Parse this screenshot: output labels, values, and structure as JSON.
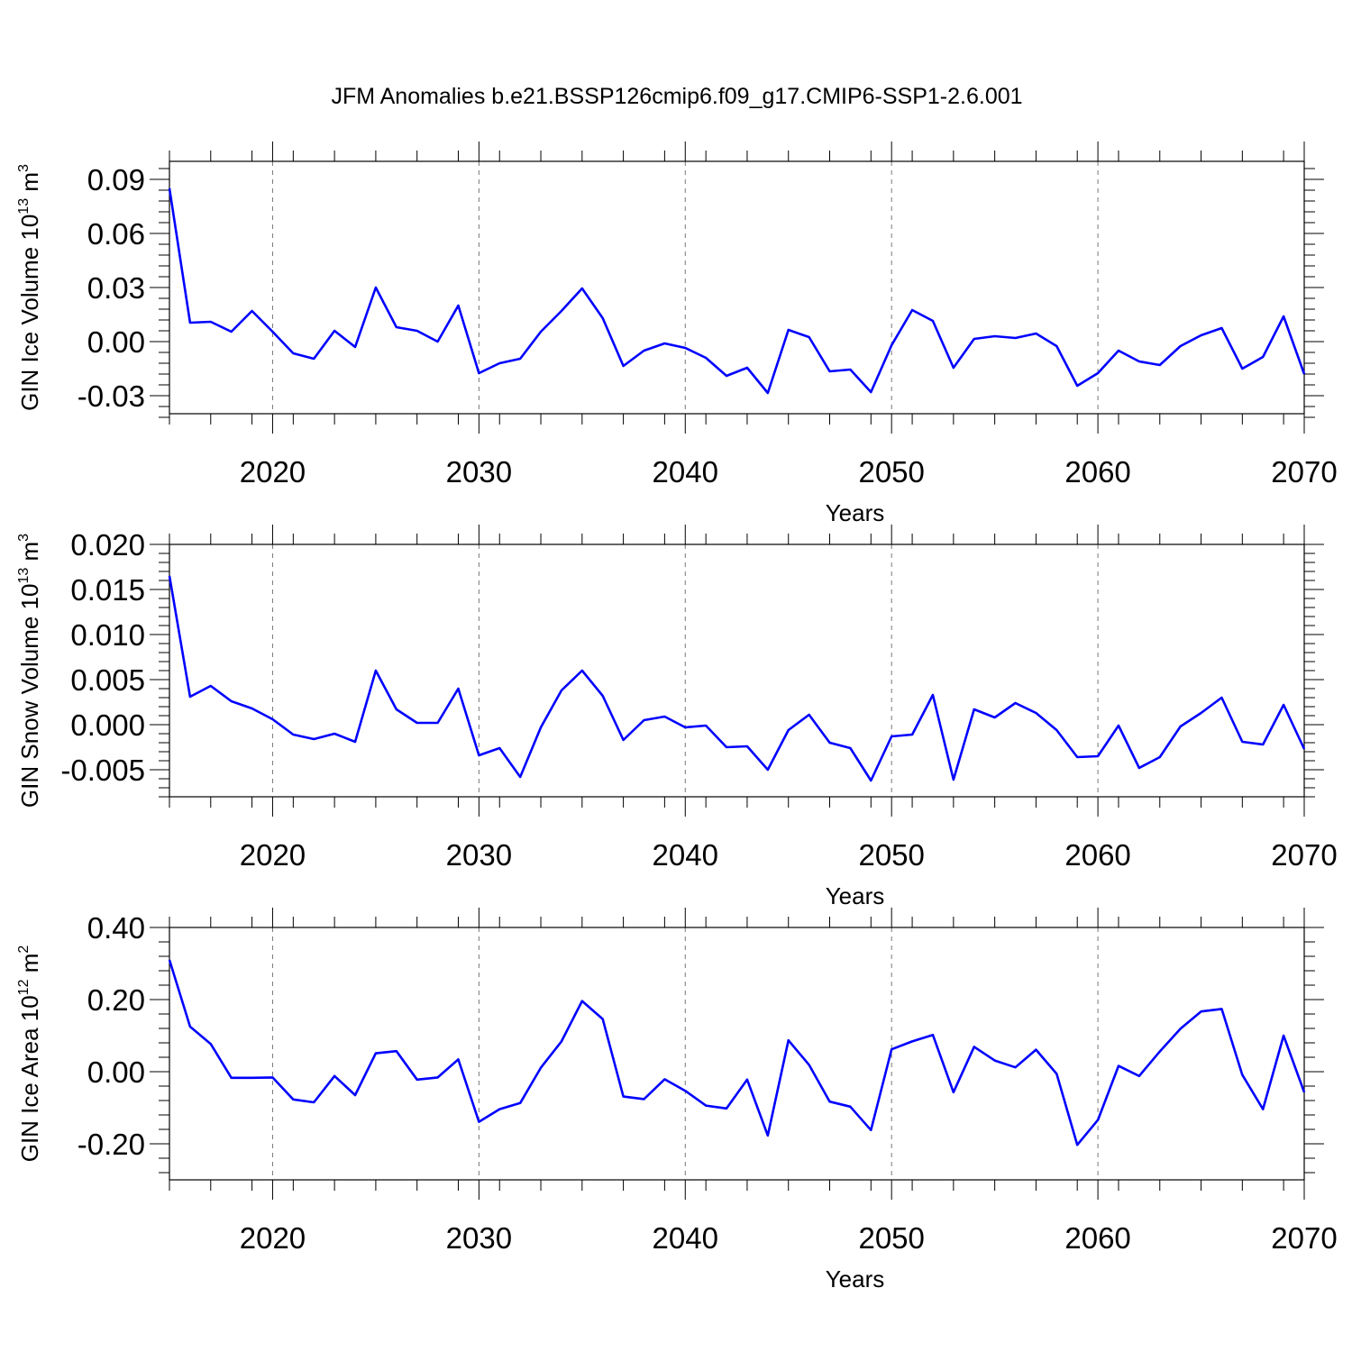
{
  "title": "JFM Anomalies b.e21.BSSP126cmip6.f09_g17.CMIP6-SSP1-2.6.001",
  "line_color": "#0000ff",
  "chart_data": [
    {
      "type": "line",
      "xlabel": "Years",
      "ylabel_base": "GIN Ice Volume 10",
      "ylabel_exp": "13",
      "ylabel_unit": " m",
      "ylabel_unit_exp": "3",
      "xlim": [
        2015,
        2070
      ],
      "ylim": [
        -0.04,
        0.1
      ],
      "xticks": [
        2020,
        2030,
        2040,
        2050,
        2060,
        2070
      ],
      "yticks": [
        -0.03,
        0.0,
        0.03,
        0.06,
        0.09
      ],
      "ytick_labels": [
        "-0.03",
        "0.00",
        "0.03",
        "0.06",
        "0.09"
      ],
      "grid": "dashed vertical at major x ticks",
      "series": [
        {
          "x": [
            2015,
            2016,
            2017,
            2018,
            2019,
            2020,
            2021,
            2022,
            2023,
            2024,
            2025,
            2026,
            2027,
            2028,
            2029,
            2030,
            2031,
            2032,
            2033,
            2034,
            2035,
            2036,
            2037,
            2038,
            2039,
            2040,
            2041,
            2042,
            2043,
            2044,
            2045,
            2046,
            2047,
            2048,
            2049,
            2050,
            2051,
            2052,
            2053,
            2054,
            2055,
            2056,
            2057,
            2058,
            2059,
            2060,
            2061,
            2062,
            2063,
            2064,
            2065,
            2066,
            2067,
            2068,
            2069,
            2070
          ],
          "values": [
            0.085,
            0.0105,
            0.011,
            0.0055,
            0.017,
            0.0055,
            -0.0065,
            -0.0095,
            0.006,
            -0.003,
            0.03,
            0.008,
            0.006,
            0.0,
            0.02,
            -0.0175,
            -0.012,
            -0.0095,
            0.0055,
            0.017,
            0.0295,
            0.013,
            -0.0135,
            -0.005,
            -0.001,
            -0.0035,
            -0.009,
            -0.019,
            -0.0145,
            -0.0285,
            0.0065,
            0.0025,
            -0.0165,
            -0.0155,
            -0.028,
            -0.002,
            0.0175,
            0.0115,
            -0.0145,
            0.0015,
            0.003,
            0.002,
            0.0045,
            -0.0025,
            -0.0245,
            -0.0175,
            -0.005,
            -0.011,
            -0.013,
            -0.0025,
            0.0035,
            0.0075,
            -0.015,
            -0.0085,
            0.014,
            -0.018
          ]
        }
      ]
    },
    {
      "type": "line",
      "xlabel": "Years",
      "ylabel_base": "GIN Snow Volume 10",
      "ylabel_exp": "13",
      "ylabel_unit": " m",
      "ylabel_unit_exp": "3",
      "xlim": [
        2015,
        2070
      ],
      "ylim": [
        -0.008,
        0.02
      ],
      "xticks": [
        2020,
        2030,
        2040,
        2050,
        2060,
        2070
      ],
      "yticks": [
        -0.005,
        0.0,
        0.005,
        0.01,
        0.015,
        0.02
      ],
      "ytick_labels": [
        "-0.005",
        "0.000",
        "0.005",
        "0.010",
        "0.015",
        "0.020"
      ],
      "grid": "dashed vertical at major x ticks",
      "series": [
        {
          "x": [
            2015,
            2016,
            2017,
            2018,
            2019,
            2020,
            2021,
            2022,
            2023,
            2024,
            2025,
            2026,
            2027,
            2028,
            2029,
            2030,
            2031,
            2032,
            2033,
            2034,
            2035,
            2036,
            2037,
            2038,
            2039,
            2040,
            2041,
            2042,
            2043,
            2044,
            2045,
            2046,
            2047,
            2048,
            2049,
            2050,
            2051,
            2052,
            2053,
            2054,
            2055,
            2056,
            2057,
            2058,
            2059,
            2060,
            2061,
            2062,
            2063,
            2064,
            2065,
            2066,
            2067,
            2068,
            2069,
            2070
          ],
          "values": [
            0.0165,
            0.0031,
            0.0043,
            0.0026,
            0.0018,
            0.0006,
            -0.0011,
            -0.0016,
            -0.001,
            -0.0019,
            0.006,
            0.0017,
            0.0002,
            0.0002,
            0.004,
            -0.0034,
            -0.0026,
            -0.0058,
            -0.0003,
            0.0038,
            0.006,
            0.0032,
            -0.0017,
            0.0005,
            0.0009,
            -0.0003,
            -0.0001,
            -0.0025,
            -0.0024,
            -0.005,
            -0.0006,
            0.0011,
            -0.002,
            -0.0026,
            -0.0062,
            -0.0013,
            -0.0011,
            0.0033,
            -0.0061,
            0.0017,
            0.0008,
            0.0024,
            0.0013,
            -0.0006,
            -0.0036,
            -0.0035,
            -0.0001,
            -0.0048,
            -0.0036,
            -0.0002,
            0.0013,
            0.003,
            -0.0019,
            -0.0022,
            0.0022,
            -0.0027
          ]
        }
      ]
    },
    {
      "type": "line",
      "xlabel": "Years",
      "ylabel_base": "GIN Ice Area 10",
      "ylabel_exp": "12",
      "ylabel_unit": " m",
      "ylabel_unit_exp": "2",
      "xlim": [
        2015,
        2070
      ],
      "ylim": [
        -0.3,
        0.4
      ],
      "xticks": [
        2020,
        2030,
        2040,
        2050,
        2060,
        2070
      ],
      "yticks": [
        -0.2,
        0.0,
        0.2,
        0.4
      ],
      "ytick_labels": [
        "-0.20",
        "0.00",
        "0.20",
        "0.40"
      ],
      "grid": "dashed vertical at major x ticks",
      "series": [
        {
          "x": [
            2015,
            2016,
            2017,
            2018,
            2019,
            2020,
            2021,
            2022,
            2023,
            2024,
            2025,
            2026,
            2027,
            2028,
            2029,
            2030,
            2031,
            2032,
            2033,
            2034,
            2035,
            2036,
            2037,
            2038,
            2039,
            2040,
            2041,
            2042,
            2043,
            2044,
            2045,
            2046,
            2047,
            2048,
            2049,
            2050,
            2051,
            2052,
            2053,
            2054,
            2055,
            2056,
            2057,
            2058,
            2059,
            2060,
            2061,
            2062,
            2063,
            2064,
            2065,
            2066,
            2067,
            2068,
            2069,
            2070
          ],
          "values": [
            0.31,
            0.125,
            0.077,
            -0.017,
            -0.017,
            -0.016,
            -0.077,
            -0.085,
            -0.012,
            -0.065,
            0.051,
            0.057,
            -0.022,
            -0.016,
            0.034,
            -0.139,
            -0.104,
            -0.087,
            0.011,
            0.084,
            0.196,
            0.146,
            -0.069,
            -0.076,
            -0.021,
            -0.053,
            -0.094,
            -0.102,
            -0.022,
            -0.177,
            0.087,
            0.019,
            -0.083,
            -0.097,
            -0.162,
            0.062,
            0.084,
            0.102,
            -0.057,
            0.069,
            0.031,
            0.012,
            0.061,
            -0.006,
            -0.203,
            -0.134,
            0.016,
            -0.012,
            0.056,
            0.119,
            0.167,
            0.174,
            -0.009,
            -0.104,
            0.1,
            -0.057
          ]
        }
      ]
    }
  ]
}
